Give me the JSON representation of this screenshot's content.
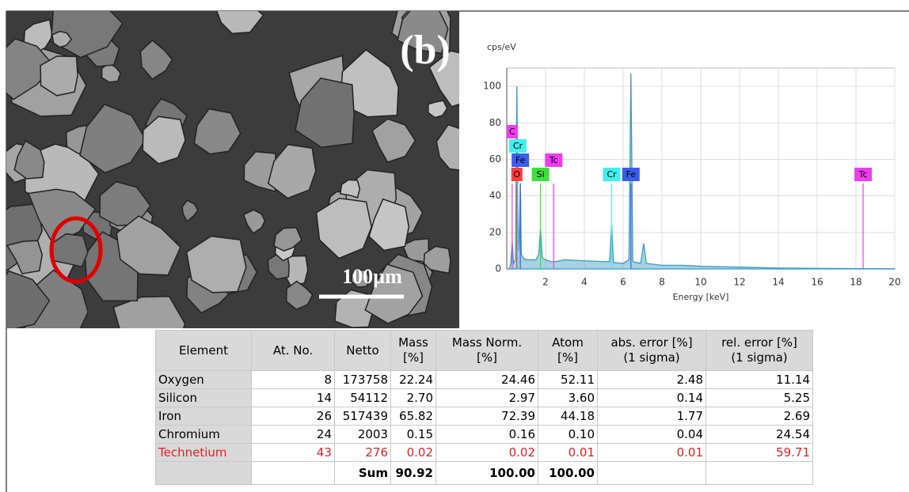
{
  "image": {
    "panel_label": "(b)",
    "scale_bar": "100µm"
  },
  "chart_data": {
    "type": "area",
    "y_label": "cps/eV",
    "x_label": "Energy [keV]",
    "x": [
      0.1,
      0.2,
      0.28,
      0.35,
      0.45,
      0.52,
      0.6,
      0.65,
      0.7,
      0.75,
      0.85,
      1.0,
      1.2,
      1.5,
      1.65,
      1.74,
      1.83,
      2.0,
      2.3,
      2.42,
      2.5,
      3,
      4,
      5,
      5.3,
      5.41,
      5.5,
      6.0,
      6.3,
      6.4,
      6.5,
      6.9,
      7.06,
      7.2,
      8,
      9,
      10,
      12,
      14,
      16,
      18,
      20
    ],
    "series": [
      {
        "color": "#3b9cc4",
        "values": [
          0,
          2,
          15,
          3,
          5,
          100,
          10,
          20,
          47,
          8,
          6,
          5,
          5,
          5,
          8,
          22,
          6,
          5,
          4,
          4,
          4,
          5,
          4.5,
          4,
          4,
          24,
          3.5,
          3,
          5,
          107,
          4,
          3,
          14,
          3,
          2,
          2,
          1.5,
          1,
          0.5,
          0.3,
          0.2,
          0.1
        ]
      }
    ],
    "xlim": [
      0,
      20
    ],
    "ylim": [
      0,
      110
    ],
    "xticks": [
      2,
      4,
      6,
      8,
      10,
      12,
      14,
      16,
      18,
      20
    ],
    "yticks": [
      0,
      20,
      40,
      60,
      80,
      100
    ],
    "grid": true,
    "markers": [
      {
        "label": "O",
        "x": 0.52,
        "color": "#ff3b3b"
      },
      {
        "label": "Fe",
        "x": 0.7,
        "color": "#3a5cf0"
      },
      {
        "label": "Cr",
        "x": 0.57,
        "color": "#3ff0f0"
      },
      {
        "label": "C",
        "x": 0.28,
        "color": "#f03cf0"
      },
      {
        "label": "Si",
        "x": 1.74,
        "color": "#3ce03c"
      },
      {
        "label": "Tc",
        "x": 2.42,
        "color": "#f03cf0"
      },
      {
        "label": "Cr",
        "x": 5.41,
        "color": "#3ff0f0"
      },
      {
        "label": "Fe",
        "x": 6.4,
        "color": "#3a5cf0"
      },
      {
        "label": "Tc",
        "x": 18.37,
        "color": "#f03cf0"
      }
    ]
  },
  "table": {
    "headers": [
      [
        "Element"
      ],
      [
        "At. No."
      ],
      [
        "Netto"
      ],
      [
        "Mass",
        "[%]"
      ],
      [
        "Mass Norm.",
        "[%]"
      ],
      [
        "Atom",
        "[%]"
      ],
      [
        "abs. error [%]",
        "(1 sigma)"
      ],
      [
        "rel. error [%]",
        "(1 sigma)"
      ]
    ],
    "rows": [
      [
        "Oxygen",
        "8",
        "173758",
        "22.24",
        "24.46",
        "52.11",
        "2.48",
        "11.14"
      ],
      [
        "Silicon",
        "14",
        "54112",
        "2.70",
        "2.97",
        "3.60",
        "0.14",
        "5.25"
      ],
      [
        "Iron",
        "26",
        "517439",
        "65.82",
        "72.39",
        "44.18",
        "1.77",
        "2.69"
      ],
      [
        "Chromium",
        "24",
        "2003",
        "0.15",
        "0.16",
        "0.10",
        "0.04",
        "24.54"
      ],
      [
        "Technetium",
        "43",
        "276",
        "0.02",
        "0.02",
        "0.01",
        "0.01",
        "59.71"
      ]
    ],
    "highlight": {
      "row": 4,
      "color": "#e02020"
    },
    "sum": {
      "label": "Sum",
      "mass": "90.92",
      "mass_norm": "100.00",
      "atom": "100.00"
    }
  }
}
